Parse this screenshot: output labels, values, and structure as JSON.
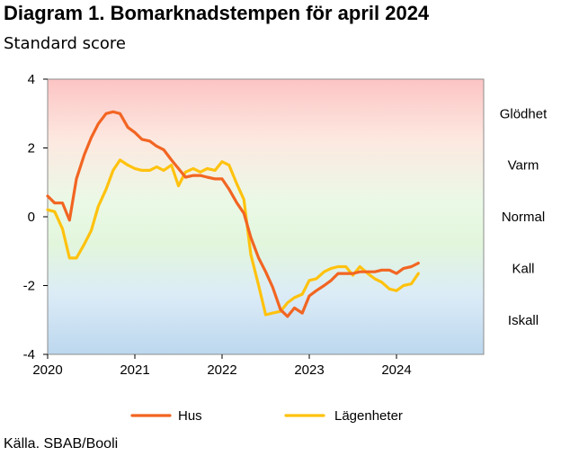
{
  "title": "Diagram 1. Bomarknadstempen för april 2024",
  "subtitle": "Standard score",
  "source": "Källa. SBAB/Booli",
  "chart_data": {
    "type": "line",
    "title": "Diagram 1. Bomarknadstempen för april 2024",
    "ylabel": "Standard score",
    "xlim": [
      2020.0,
      2025.0
    ],
    "ylim": [
      -4,
      4
    ],
    "y_ticks": [
      4,
      2,
      0,
      -2,
      -4
    ],
    "x_ticks": [
      2020,
      2021,
      2022,
      2023,
      2024
    ],
    "grid": false,
    "legend_position": "bottom",
    "zones": [
      {
        "label": "Glödhet",
        "y": 3.0
      },
      {
        "label": "Varm",
        "y": 1.5
      },
      {
        "label": "Normal",
        "y": 0.0
      },
      {
        "label": "Kall",
        "y": -1.5
      },
      {
        "label": "Iskall",
        "y": -3.0
      }
    ],
    "series": [
      {
        "name": "Hus",
        "color": "#f26522",
        "x": [
          2020.0,
          2020.08,
          2020.17,
          2020.25,
          2020.33,
          2020.42,
          2020.5,
          2020.58,
          2020.67,
          2020.75,
          2020.83,
          2020.92,
          2021.0,
          2021.08,
          2021.17,
          2021.25,
          2021.33,
          2021.42,
          2021.5,
          2021.58,
          2021.67,
          2021.75,
          2021.83,
          2021.92,
          2022.0,
          2022.08,
          2022.17,
          2022.25,
          2022.33,
          2022.42,
          2022.5,
          2022.58,
          2022.67,
          2022.75,
          2022.83,
          2022.92,
          2023.0,
          2023.08,
          2023.17,
          2023.25,
          2023.33,
          2023.42,
          2023.5,
          2023.58,
          2023.67,
          2023.75,
          2023.83,
          2023.92,
          2024.0,
          2024.08,
          2024.17,
          2024.25
        ],
        "y": [
          0.6,
          0.4,
          0.4,
          -0.1,
          1.1,
          1.8,
          2.3,
          2.7,
          3.0,
          3.05,
          3.0,
          2.6,
          2.45,
          2.25,
          2.2,
          2.05,
          1.95,
          1.65,
          1.4,
          1.15,
          1.2,
          1.2,
          1.15,
          1.1,
          1.1,
          0.8,
          0.4,
          0.1,
          -0.6,
          -1.2,
          -1.6,
          -2.05,
          -2.7,
          -2.9,
          -2.65,
          -2.8,
          -2.3,
          -2.15,
          -2.0,
          -1.85,
          -1.65,
          -1.65,
          -1.65,
          -1.6,
          -1.6,
          -1.6,
          -1.55,
          -1.55,
          -1.65,
          -1.5,
          -1.45,
          -1.35
        ]
      },
      {
        "name": "Lägenheter",
        "color": "#ffc20e",
        "x": [
          2020.0,
          2020.08,
          2020.17,
          2020.25,
          2020.33,
          2020.42,
          2020.5,
          2020.58,
          2020.67,
          2020.75,
          2020.83,
          2020.92,
          2021.0,
          2021.08,
          2021.17,
          2021.25,
          2021.33,
          2021.42,
          2021.5,
          2021.58,
          2021.67,
          2021.75,
          2021.83,
          2021.92,
          2022.0,
          2022.08,
          2022.17,
          2022.25,
          2022.33,
          2022.42,
          2022.5,
          2022.58,
          2022.67,
          2022.75,
          2022.83,
          2022.92,
          2023.0,
          2023.08,
          2023.17,
          2023.25,
          2023.33,
          2023.42,
          2023.5,
          2023.58,
          2023.67,
          2023.75,
          2023.83,
          2023.92,
          2024.0,
          2024.08,
          2024.17,
          2024.25
        ],
        "y": [
          0.2,
          0.15,
          -0.35,
          -1.2,
          -1.2,
          -0.8,
          -0.4,
          0.3,
          0.8,
          1.35,
          1.65,
          1.5,
          1.4,
          1.35,
          1.35,
          1.45,
          1.35,
          1.5,
          0.9,
          1.3,
          1.4,
          1.3,
          1.4,
          1.35,
          1.6,
          1.5,
          0.95,
          0.5,
          -1.1,
          -2.0,
          -2.85,
          -2.8,
          -2.75,
          -2.5,
          -2.35,
          -2.25,
          -1.85,
          -1.8,
          -1.6,
          -1.5,
          -1.45,
          -1.45,
          -1.7,
          -1.45,
          -1.65,
          -1.8,
          -1.9,
          -2.1,
          -2.15,
          -2.0,
          -1.95,
          -1.65
        ]
      }
    ]
  }
}
